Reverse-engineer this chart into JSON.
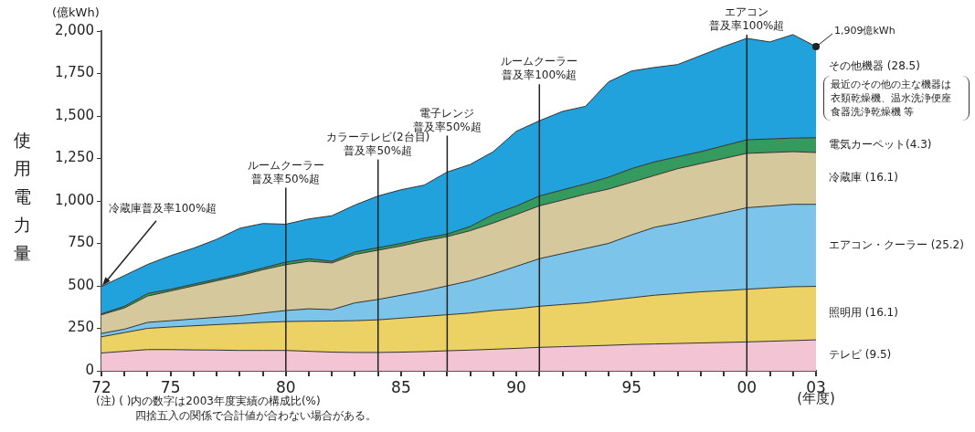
{
  "chart_data": {
    "type": "area",
    "stacked": true,
    "ylabel": "使用電力量",
    "xlabel": "(年度)",
    "x": [
      1972,
      1973,
      1974,
      1975,
      1976,
      1977,
      1978,
      1979,
      1980,
      1981,
      1982,
      1983,
      1984,
      1985,
      1986,
      1987,
      1988,
      1989,
      1990,
      1991,
      1992,
      1993,
      1994,
      1995,
      1996,
      1997,
      1998,
      1999,
      2000,
      2001,
      2002,
      2003
    ],
    "series": [
      {
        "name": "テレビ (9.5)",
        "color": "#f2c4d4",
        "values": [
          105,
          115,
          125,
          125,
          123,
          122,
          120,
          120,
          120,
          115,
          110,
          108,
          108,
          110,
          113,
          118,
          122,
          127,
          132,
          138,
          142,
          146,
          150,
          155,
          158,
          161,
          164,
          167,
          170,
          174,
          178,
          182
        ]
      },
      {
        "name": "照明用 (16.1)",
        "color": "#ecd264",
        "values": [
          95,
          110,
          125,
          133,
          142,
          150,
          158,
          165,
          170,
          177,
          183,
          187,
          192,
          200,
          207,
          212,
          218,
          228,
          233,
          242,
          248,
          254,
          265,
          275,
          287,
          294,
          301,
          305,
          310,
          314,
          317,
          315
        ]
      },
      {
        "name": "エアコン・クーラー (25.2)",
        "color": "#7cc4ea",
        "values": [
          20,
          20,
          35,
          37,
          40,
          43,
          47,
          55,
          65,
          73,
          67,
          105,
          120,
          135,
          150,
          170,
          190,
          215,
          250,
          280,
          300,
          320,
          335,
          370,
          400,
          415,
          435,
          458,
          480,
          482,
          485,
          483
        ]
      },
      {
        "name": "冷蔵庫 (16.1)",
        "color": "#d4c89c",
        "values": [
          110,
          125,
          155,
          175,
          195,
          215,
          235,
          255,
          270,
          280,
          275,
          285,
          290,
          290,
          295,
          290,
          295,
          300,
          305,
          311,
          315,
          320,
          320,
          310,
          305,
          320,
          320,
          320,
          320,
          315,
          310,
          305
        ]
      },
      {
        "name": "電気カーペット(4.3)",
        "color": "#359a5e",
        "values": [
          5,
          10,
          15,
          10,
          10,
          10,
          10,
          10,
          15,
          15,
          10,
          15,
          15,
          15,
          15,
          15,
          25,
          50,
          50,
          58,
          60,
          60,
          70,
          80,
          80,
          70,
          70,
          75,
          80,
          80,
          80,
          87
        ]
      },
      {
        "name": "その他機器 (28.5)",
        "color": "#22a2dc",
        "values": [
          161,
          181,
          171,
          198,
          212,
          234,
          269,
          262,
          223,
          234,
          268,
          276,
          304,
          316,
          313,
          365,
          365,
          370,
          440,
          443,
          462,
          457,
          561,
          575,
          556,
          543,
          566,
          584,
          597,
          571,
          609,
          537
        ]
      }
    ],
    "xlim": [
      1972,
      2003
    ],
    "xticks": [
      {
        "value": 1972,
        "label": "72"
      },
      {
        "value": 1973,
        "label": null
      },
      {
        "value": 1974,
        "label": null
      },
      {
        "value": 1975,
        "label": "75"
      },
      {
        "value": 1976,
        "label": null
      },
      {
        "value": 1977,
        "label": null
      },
      {
        "value": 1978,
        "label": null
      },
      {
        "value": 1979,
        "label": null
      },
      {
        "value": 1980,
        "label": "80"
      },
      {
        "value": 1981,
        "label": null
      },
      {
        "value": 1982,
        "label": null
      },
      {
        "value": 1983,
        "label": null
      },
      {
        "value": 1984,
        "label": null
      },
      {
        "value": 1985,
        "label": "85"
      },
      {
        "value": 1986,
        "label": null
      },
      {
        "value": 1987,
        "label": null
      },
      {
        "value": 1988,
        "label": null
      },
      {
        "value": 1989,
        "label": null
      },
      {
        "value": 1990,
        "label": "90"
      },
      {
        "value": 1991,
        "label": null
      },
      {
        "value": 1992,
        "label": null
      },
      {
        "value": 1993,
        "label": null
      },
      {
        "value": 1994,
        "label": null
      },
      {
        "value": 1995,
        "label": "95"
      },
      {
        "value": 1996,
        "label": null
      },
      {
        "value": 1997,
        "label": null
      },
      {
        "value": 1998,
        "label": null
      },
      {
        "value": 1999,
        "label": null
      },
      {
        "value": 2000,
        "label": "00"
      },
      {
        "value": 2001,
        "label": null
      },
      {
        "value": 2002,
        "label": null
      },
      {
        "value": 2003,
        "label": "03"
      }
    ],
    "ylim": [
      0,
      2000
    ],
    "yticks": [
      0,
      250,
      500,
      750,
      {
        "value": 1000,
        "label": "1,000"
      },
      {
        "value": 1250,
        "label": "1,250"
      },
      {
        "value": 1500,
        "label": "1,500"
      },
      {
        "value": 1750,
        "label": "1,750"
      },
      {
        "value": 2000,
        "label": "2,000"
      }
    ],
    "grid": false,
    "ref_lines": [
      {
        "axis": "x",
        "value": 1980,
        "label": "ルームクーラー普及率50%超"
      },
      {
        "axis": "x",
        "value": 1984,
        "label": "カラーテレビ(2台目)普及率50%超"
      },
      {
        "axis": "x",
        "value": 1987,
        "label": "電子レンジ普及率50%超"
      },
      {
        "axis": "x",
        "value": 1991,
        "label": "ルームクーラー普及率100%超"
      },
      {
        "axis": "x",
        "value": 2000,
        "label": "エアコン普及率100%超"
      }
    ],
    "annotations": [
      "(億kWh)",
      "最近のその他の主な機器は衣類乾燥機、温水洗浄便座食器洗浄乾燥機 等",
      "(注) ( )内の数字は2003年度実績の構成比(%)",
      "四捨五入の関係で合計値が合わない場合がある。",
      {
        "text": "冷蔵庫普及率100%超",
        "x": 1972,
        "y": 496
      },
      {
        "text": "1,909億kWh",
        "x": 2003,
        "y": 1909
      }
    ]
  }
}
